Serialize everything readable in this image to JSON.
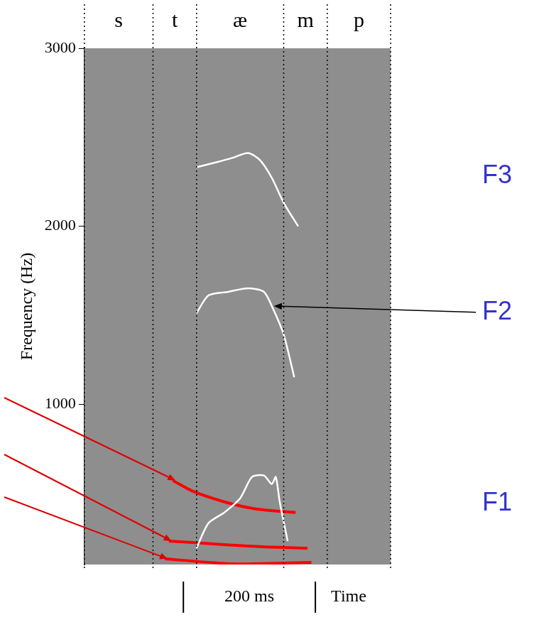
{
  "chart_data": {
    "type": "line",
    "y_label": "Frequency (Hz)",
    "x_label": "Time",
    "ylim": [
      100,
      3000
    ],
    "yticks": [
      1000,
      2000,
      3000
    ],
    "xlim": [
      0,
      464
    ],
    "tick_labels": "y",
    "grid": false,
    "segments": [
      {
        "label": "s",
        "start": 0,
        "end": 104
      },
      {
        "label": "t",
        "start": 104,
        "end": 170
      },
      {
        "label": "æ",
        "start": 170,
        "end": 302
      },
      {
        "label": "m",
        "start": 302,
        "end": 368
      },
      {
        "label": "p",
        "start": 368,
        "end": 464
      }
    ],
    "scale_bar": {
      "label": "200 ms",
      "start": 150,
      "end": 350
    },
    "series": [
      {
        "name": "F1",
        "color": "#ffffff",
        "line_style": "solid",
        "x": [
          170,
          188,
          212,
          236,
          254,
          272,
          284,
          290,
          296,
          308
        ],
        "values": [
          192,
          332,
          392,
          472,
          592,
          600,
          552,
          592,
          452,
          232
        ]
      },
      {
        "name": "F2",
        "color": "#ffffff",
        "line_style": "solid",
        "x": [
          170,
          188,
          218,
          248,
          272,
          284,
          302,
          318
        ],
        "values": [
          1512,
          1612,
          1632,
          1652,
          1632,
          1552,
          1392,
          1152
        ]
      },
      {
        "name": "F3",
        "color": "#ffffff",
        "line_style": "solid",
        "x": [
          170,
          200,
          224,
          248,
          266,
          284,
          302,
          324
        ],
        "values": [
          2332,
          2360,
          2384,
          2412,
          2372,
          2272,
          2132,
          2000
        ]
      },
      {
        "color": "#ff0000",
        "line_style": "solid",
        "x": [
          134,
          164,
          212,
          260,
          320
        ],
        "values": [
          572,
          512,
          452,
          412,
          392
        ]
      },
      {
        "color": "#ff0000",
        "line_style": "solid",
        "x": [
          128,
          200,
          270,
          338
        ],
        "values": [
          232,
          215,
          200,
          192
        ]
      },
      {
        "color": "#ff0000",
        "line_style": "solid",
        "x": [
          122,
          224,
          300,
          344
        ],
        "values": [
          132,
          104,
          108,
          112
        ]
      }
    ]
  }
}
